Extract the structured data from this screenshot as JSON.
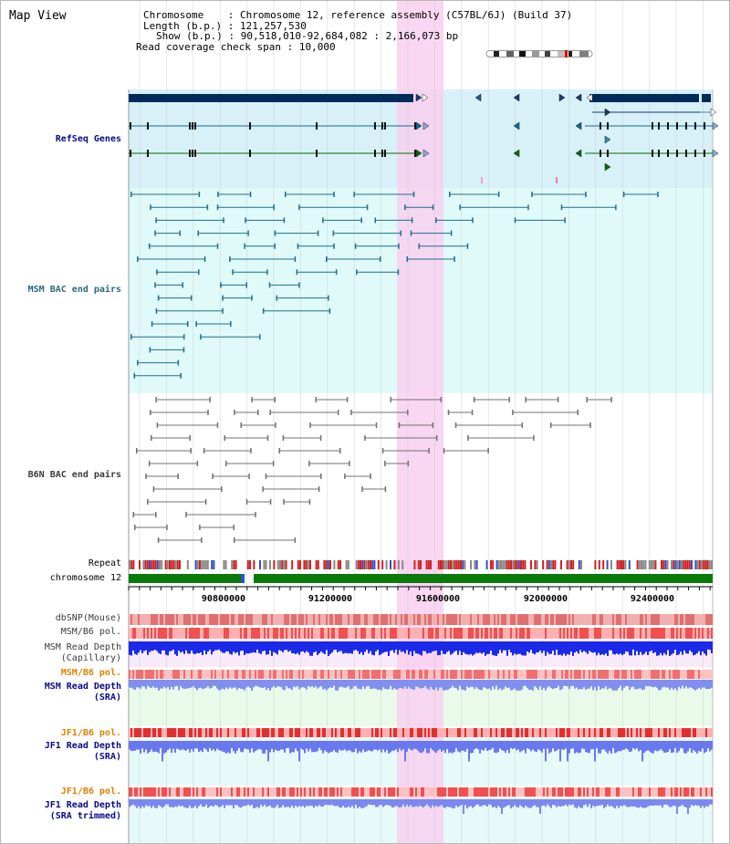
{
  "title": "Map View",
  "info": {
    "chromosome_key": "Chromosome",
    "chromosome_val": "Chromosome 12, reference assembly (C57BL/6J) (Build 37)",
    "length_key": "Length (b.p.)",
    "length_val": "121,257,530",
    "show_key": "Show (b.p.)",
    "show_val": "90,518,010-92,684,082 : 2,166,073 bp",
    "coverage_key": "Read coverage check span",
    "coverage_val": "10,000"
  },
  "tracks": {
    "refseq": "RefSeq Genes",
    "msm_bac": "MSM BAC end pairs",
    "b6n_bac": "B6N BAC end pairs",
    "repeat": "Repeat",
    "chromosome": "chromosome 12",
    "dbsnp": "dbSNP(Mouse)",
    "msm_b6_pol": "MSM/B6 pol.",
    "msm_depth_cap_1": "MSM Read Depth",
    "msm_depth_cap_2": "(Capillary)",
    "msm_b6_pol_2": "MSM/B6 pol.",
    "msm_depth_sra_1": "MSM Read Depth",
    "msm_depth_sra_2": "(SRA)",
    "jf1_b6_pol": "JF1/B6 pol.",
    "jf1_depth_sra_1": "JF1 Read Depth",
    "jf1_depth_sra_2": "(SRA)",
    "jf1_b6_pol_2": "JF1/B6 pol.",
    "jf1_depth_trim_1": "JF1 Read Depth",
    "jf1_depth_trim_2": "(SRA trimmed)"
  },
  "axis": {
    "ticks": [
      "90800000",
      "91200000",
      "91600000",
      "92000000",
      "92400000"
    ]
  },
  "colors": {
    "highlight": "#f8d0f0",
    "refseq_bg": "#d8f0f8",
    "bac_bg": "#e0fafa",
    "gene_dark": "#002a5a",
    "msm_line": "#1e6e8e",
    "b6n_line": "#707070",
    "chrom_green": "#0a7a0a",
    "label_navy": "#0a0a8a",
    "label_teal": "#2a6a7a",
    "label_gray": "#3a3a3a",
    "label_orange": "#e08000"
  }
}
